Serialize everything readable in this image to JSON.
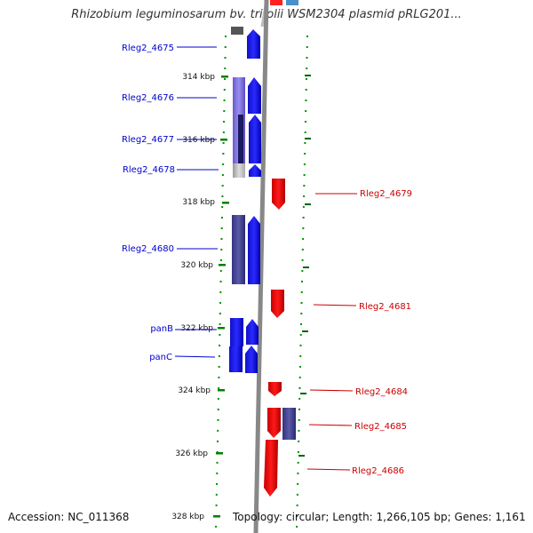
{
  "title": "Rhizobium leguminosarum bv. trifolii WSM2304 plasmid pRLG201...",
  "footer": {
    "accession_label": "Accession:",
    "accession": "NC_011368",
    "topology_label": "Topology:",
    "topology": "circular;",
    "length_label": "Length:",
    "length": "1,266,105 bp;",
    "genes_label": "Genes:",
    "genes": "1,161"
  },
  "colors": {
    "forward_gene": "#0000ff",
    "reverse_gene": "#ff0000",
    "forward_label": "#0000cc",
    "reverse_label": "#cc0000",
    "scale_tick": "#008000",
    "backbone": "#888888",
    "homolog": "#444499"
  },
  "scale_labels": [
    "314 kbp",
    "316 kbp",
    "318 kbp",
    "320 kbp",
    "322 kbp",
    "324 kbp",
    "326 kbp",
    "328 kbp"
  ],
  "forward_genes": [
    {
      "name": "Rleg2_4675"
    },
    {
      "name": "Rleg2_4676"
    },
    {
      "name": "Rleg2_4677"
    },
    {
      "name": "Rleg2_4678"
    },
    {
      "name": "Rleg2_4680"
    },
    {
      "name": "panB"
    },
    {
      "name": "panC"
    }
  ],
  "reverse_genes": [
    {
      "name": "Rleg2_4679"
    },
    {
      "name": "Rleg2_4681"
    },
    {
      "name": "Rleg2_4684"
    },
    {
      "name": "Rleg2_4685"
    },
    {
      "name": "Rleg2_4686"
    }
  ]
}
